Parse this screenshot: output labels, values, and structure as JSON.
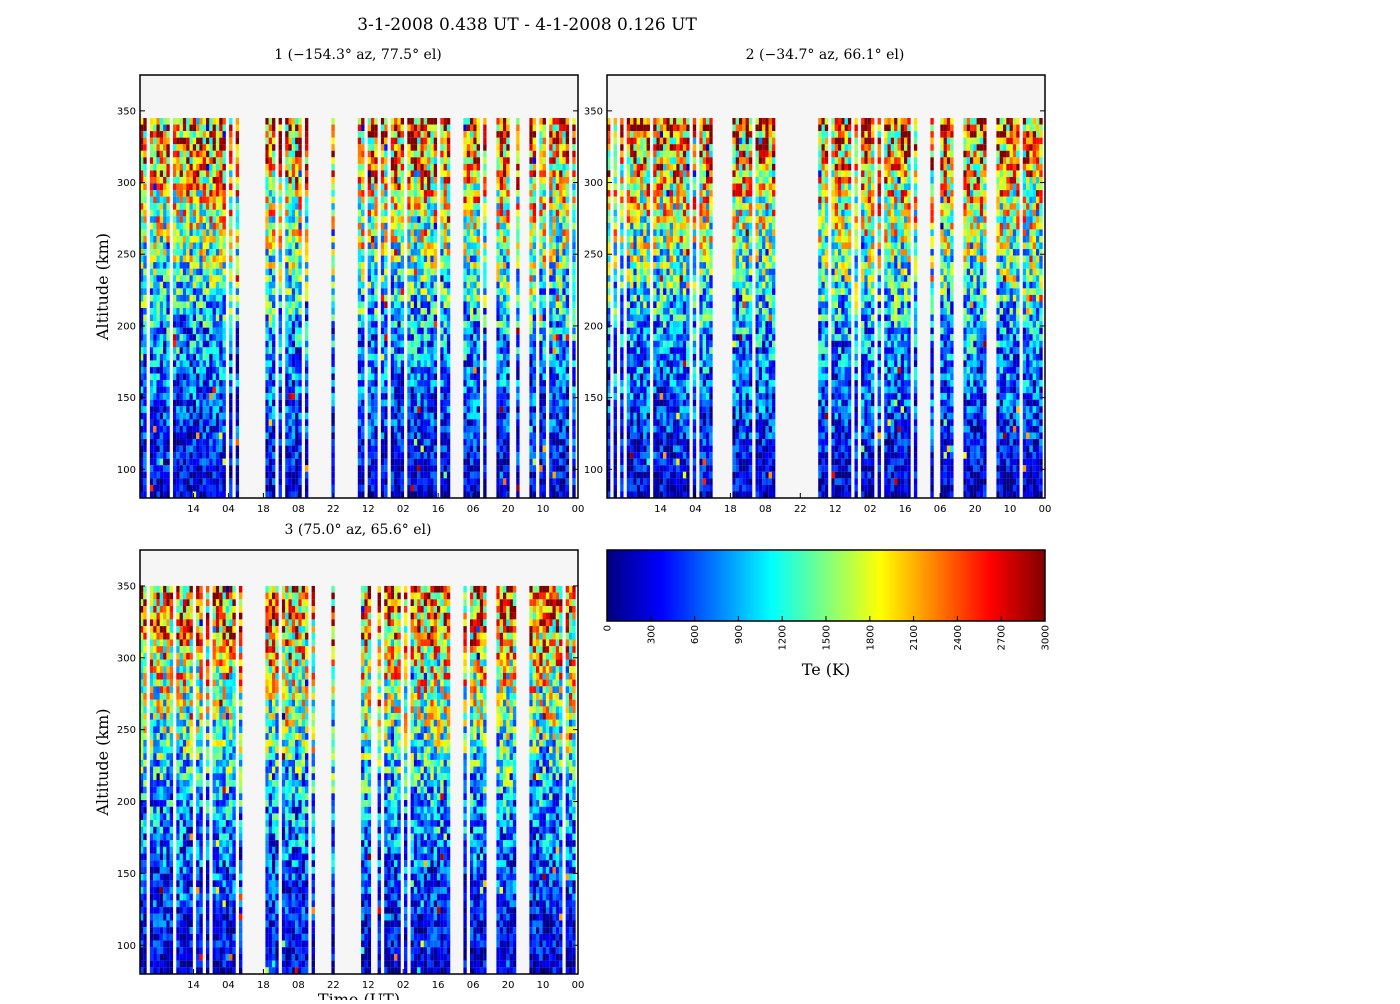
{
  "figure": {
    "title": "3-1-2008 0.438 UT - 4-1-2008 0.126 UT"
  },
  "chart_data": [
    {
      "type": "heatmap",
      "title": "1 (−154.3° az, 77.5° el)",
      "xlabel": "",
      "ylabel": "Altitude (km)",
      "ylim": [
        80,
        375
      ],
      "ytick_values": [
        100,
        150,
        200,
        250,
        300,
        350
      ],
      "yticks": [
        "100",
        "150",
        "200",
        "250",
        "300",
        "350"
      ],
      "xticks": [
        "14",
        "04",
        "18",
        "08",
        "22",
        "12",
        "02",
        "16",
        "06",
        "20",
        "10",
        "00"
      ],
      "data_altitude_range": [
        80,
        345
      ],
      "value_label": "Te (K)",
      "value_range": [
        0,
        3000
      ],
      "data_gaps": [
        [
          0.235,
          0.285
        ],
        [
          0.405,
          0.44
        ],
        [
          0.45,
          0.5
        ],
        [
          0.715,
          0.74
        ],
        [
          0.795,
          0.82
        ],
        [
          0.87,
          0.895
        ]
      ]
    },
    {
      "type": "heatmap",
      "title": "2 (−34.7° az, 66.1° el)",
      "xlabel": "",
      "ylabel": "",
      "ylim": [
        80,
        375
      ],
      "ytick_values": [
        100,
        150,
        200,
        250,
        300,
        350
      ],
      "yticks": [
        "100",
        "150",
        "200",
        "250",
        "300",
        "350"
      ],
      "xticks": [
        "14",
        "04",
        "18",
        "08",
        "22",
        "12",
        "02",
        "16",
        "06",
        "20",
        "10",
        "00"
      ],
      "data_altitude_range": [
        80,
        345
      ],
      "value_label": "Te (K)",
      "value_range": [
        0,
        3000
      ],
      "data_gaps": [
        [
          0.24,
          0.29
        ],
        [
          0.405,
          0.44
        ],
        [
          0.45,
          0.485
        ],
        [
          0.715,
          0.74
        ],
        [
          0.795,
          0.82
        ],
        [
          0.87,
          0.895
        ]
      ]
    },
    {
      "type": "heatmap",
      "title": "3 (75.0° az, 65.6° el)",
      "xlabel": "Time (UT)",
      "ylabel": "Altitude (km)",
      "ylim": [
        80,
        375
      ],
      "ytick_values": [
        100,
        150,
        200,
        250,
        300,
        350
      ],
      "yticks": [
        "100",
        "150",
        "200",
        "250",
        "300",
        "350"
      ],
      "xticks": [
        "14",
        "04",
        "18",
        "08",
        "22",
        "12",
        "02",
        "16",
        "06",
        "20",
        "10",
        "00"
      ],
      "data_altitude_range": [
        80,
        350
      ],
      "value_label": "Te (K)",
      "value_range": [
        0,
        3000
      ],
      "data_gaps": [
        [
          0.235,
          0.285
        ],
        [
          0.405,
          0.44
        ],
        [
          0.45,
          0.5
        ],
        [
          0.715,
          0.74
        ],
        [
          0.795,
          0.82
        ],
        [
          0.87,
          0.895
        ]
      ]
    }
  ],
  "colorbar": {
    "label": "Te (K)",
    "range": [
      0,
      3000
    ],
    "ticks": [
      "0",
      "300",
      "600",
      "900",
      "1200",
      "1500",
      "1800",
      "2100",
      "2400",
      "2700",
      "3000"
    ],
    "colormap": "jet",
    "colors": [
      "#00007f",
      "#0000ff",
      "#007fff",
      "#00ffff",
      "#7fff7f",
      "#ffff00",
      "#ff7f00",
      "#ff0000",
      "#7f0000"
    ]
  }
}
